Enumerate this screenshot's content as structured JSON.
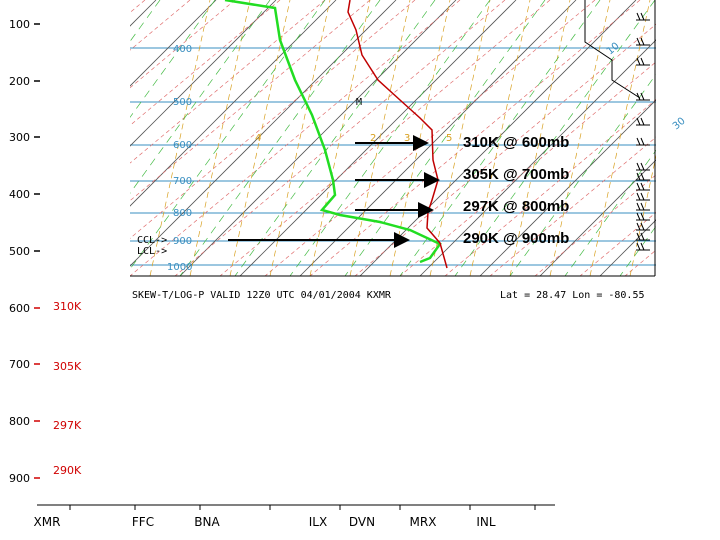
{
  "pressure_axis": {
    "labels": [
      "100",
      "200",
      "300",
      "400",
      "500",
      "600",
      "700",
      "800",
      "900"
    ]
  },
  "theta_labels": [
    "310K",
    "305K",
    "297K",
    "290K"
  ],
  "stations": [
    "XMR",
    "FFC",
    "BNA",
    "ILX",
    "DVN",
    "MRX",
    "INL"
  ],
  "skewt": {
    "isobar_labels": [
      "400",
      "500",
      "600",
      "700",
      "800",
      "900",
      "1000"
    ],
    "side_labels": [
      "CCL->",
      "LCL->"
    ],
    "mixing_labels": [
      "4",
      "2",
      "3",
      "5"
    ],
    "marker": "M",
    "corner_labels": [
      "10",
      "30"
    ],
    "annotations": [
      "310K @ 600mb",
      "305K @ 700mb",
      "297K @ 800mb",
      "290K @ 900mb"
    ],
    "caption": "SKEW-T/LOG-P VALID 12Z0 UTC 04/01/2004   KXMR",
    "location": "Lat =    28.47   Lon =   -80.55"
  }
}
